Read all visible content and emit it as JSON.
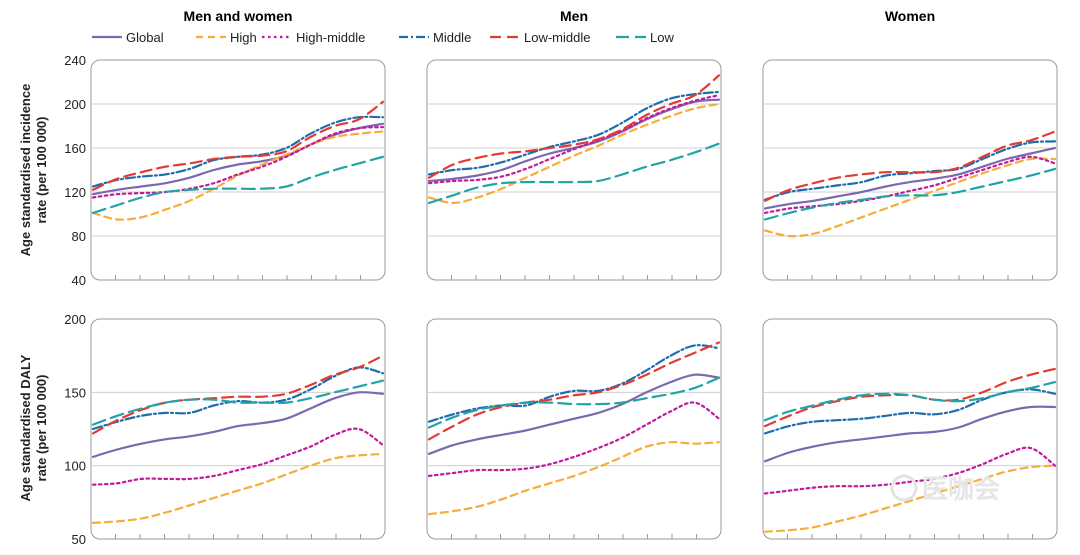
{
  "columns": [
    "Men and women",
    "Men",
    "Women"
  ],
  "row_labels": [
    [
      "Age standardised incidence",
      "rate (per 100 000)"
    ],
    [
      "Age standardised DALY",
      "rate (per 100 000)"
    ]
  ],
  "watermark": "医咖会",
  "legend": [
    {
      "name": "Global",
      "color": "#7b68b0",
      "dash": "solid"
    },
    {
      "name": "High",
      "color": "#f6ad3c",
      "dash": "dashed"
    },
    {
      "name": "High-middle",
      "color": "#c21a9c",
      "dash": "dotted"
    },
    {
      "name": "Middle",
      "color": "#1f6cae",
      "dash": "dashdot"
    },
    {
      "name": "Low-middle",
      "color": "#e23b32",
      "dash": "longdash"
    },
    {
      "name": "Low",
      "color": "#22a3a9",
      "dash": "longdash2"
    }
  ],
  "chart_data": [
    {
      "type": "line",
      "row": 0,
      "col": 0,
      "title": "Men and women",
      "ylabel": "Age standardised incidence rate (per 100 000)",
      "ylim": [
        40,
        240
      ],
      "yticks": [
        40,
        80,
        120,
        160,
        200,
        240
      ],
      "x": [
        0,
        1,
        2,
        3,
        4,
        5,
        6,
        7,
        8,
        9,
        10,
        11,
        12
      ],
      "series": [
        {
          "name": "Global",
          "values": [
            118,
            122,
            125,
            128,
            133,
            140,
            145,
            148,
            153,
            163,
            172,
            178,
            182
          ]
        },
        {
          "name": "High",
          "values": [
            101,
            95,
            97,
            104,
            112,
            123,
            135,
            145,
            154,
            163,
            170,
            173,
            175
          ]
        },
        {
          "name": "High-middle",
          "values": [
            115,
            118,
            119,
            120,
            123,
            128,
            136,
            143,
            152,
            163,
            173,
            178,
            179
          ]
        },
        {
          "name": "Middle",
          "values": [
            125,
            131,
            134,
            136,
            141,
            149,
            152,
            154,
            160,
            173,
            183,
            188,
            188
          ]
        },
        {
          "name": "Low-middle",
          "values": [
            122,
            132,
            138,
            143,
            146,
            150,
            152,
            153,
            157,
            170,
            180,
            186,
            202
          ]
        },
        {
          "name": "Low",
          "values": [
            101,
            108,
            115,
            120,
            122,
            123,
            123,
            123,
            125,
            133,
            140,
            146,
            152
          ]
        }
      ]
    },
    {
      "type": "line",
      "row": 0,
      "col": 1,
      "title": "Men",
      "ylim": [
        40,
        240
      ],
      "yticks": [
        40,
        80,
        120,
        160,
        200,
        240
      ],
      "x": [
        0,
        1,
        2,
        3,
        4,
        5,
        6,
        7,
        8,
        9,
        10,
        11,
        12
      ],
      "series": [
        {
          "name": "Global",
          "values": [
            130,
            132,
            135,
            140,
            148,
            155,
            160,
            166,
            175,
            186,
            195,
            202,
            204
          ]
        },
        {
          "name": "High",
          "values": [
            115,
            110,
            115,
            123,
            133,
            143,
            153,
            162,
            172,
            181,
            189,
            196,
            200
          ]
        },
        {
          "name": "High-middle",
          "values": [
            128,
            130,
            131,
            134,
            141,
            150,
            159,
            167,
            176,
            187,
            196,
            203,
            208
          ]
        },
        {
          "name": "Middle",
          "values": [
            136,
            140,
            142,
            147,
            154,
            161,
            166,
            172,
            183,
            196,
            205,
            209,
            211
          ]
        },
        {
          "name": "Low-middle",
          "values": [
            133,
            145,
            151,
            155,
            157,
            160,
            163,
            168,
            177,
            190,
            200,
            208,
            226
          ]
        },
        {
          "name": "Low",
          "values": [
            110,
            117,
            124,
            128,
            129,
            129,
            129,
            130,
            136,
            143,
            149,
            156,
            164
          ]
        }
      ]
    },
    {
      "type": "line",
      "row": 0,
      "col": 2,
      "title": "Women",
      "ylim": [
        40,
        240
      ],
      "yticks": [
        40,
        80,
        120,
        160,
        200,
        240
      ],
      "x": [
        0,
        1,
        2,
        3,
        4,
        5,
        6,
        7,
        8,
        9,
        10,
        11,
        12
      ],
      "series": [
        {
          "name": "Global",
          "values": [
            105,
            109,
            112,
            116,
            120,
            125,
            129,
            132,
            136,
            143,
            150,
            155,
            160
          ]
        },
        {
          "name": "High",
          "values": [
            85,
            80,
            82,
            89,
            97,
            105,
            113,
            121,
            129,
            137,
            144,
            150,
            150
          ]
        },
        {
          "name": "High-middle",
          "values": [
            101,
            105,
            107,
            109,
            112,
            116,
            121,
            126,
            133,
            140,
            147,
            152,
            146
          ]
        },
        {
          "name": "Middle",
          "values": [
            113,
            120,
            123,
            126,
            129,
            135,
            137,
            139,
            141,
            150,
            159,
            165,
            166
          ]
        },
        {
          "name": "Low-middle",
          "values": [
            112,
            122,
            128,
            133,
            136,
            138,
            138,
            138,
            142,
            152,
            162,
            167,
            175
          ]
        },
        {
          "name": "Low",
          "values": [
            95,
            101,
            106,
            110,
            113,
            116,
            117,
            117,
            120,
            125,
            130,
            135,
            141
          ]
        }
      ]
    },
    {
      "type": "line",
      "row": 1,
      "col": 0,
      "ylabel": "Age standardised DALY rate (per 100 000)",
      "ylim": [
        50,
        200
      ],
      "yticks": [
        50,
        100,
        150,
        200
      ],
      "x": [
        0,
        1,
        2,
        3,
        4,
        5,
        6,
        7,
        8,
        9,
        10,
        11,
        12
      ],
      "series": [
        {
          "name": "Global",
          "values": [
            106,
            111,
            115,
            118,
            120,
            123,
            127,
            129,
            132,
            139,
            146,
            150,
            149
          ]
        },
        {
          "name": "High",
          "values": [
            61,
            62,
            64,
            68,
            73,
            78,
            83,
            88,
            94,
            100,
            105,
            107,
            108
          ]
        },
        {
          "name": "High-middle",
          "values": [
            87,
            88,
            91,
            91,
            91,
            93,
            97,
            101,
            107,
            113,
            121,
            125,
            114
          ]
        },
        {
          "name": "Middle",
          "values": [
            125,
            130,
            134,
            136,
            136,
            141,
            144,
            143,
            145,
            152,
            161,
            167,
            163
          ]
        },
        {
          "name": "Low-middle",
          "values": [
            122,
            131,
            138,
            143,
            145,
            146,
            147,
            147,
            149,
            155,
            162,
            167,
            175
          ]
        },
        {
          "name": "Low",
          "values": [
            128,
            134,
            139,
            143,
            145,
            145,
            143,
            143,
            143,
            146,
            150,
            154,
            158
          ]
        }
      ]
    },
    {
      "type": "line",
      "row": 1,
      "col": 1,
      "ylim": [
        50,
        200
      ],
      "yticks": [
        50,
        100,
        150,
        200
      ],
      "x": [
        0,
        1,
        2,
        3,
        4,
        5,
        6,
        7,
        8,
        9,
        10,
        11,
        12
      ],
      "series": [
        {
          "name": "Global",
          "values": [
            108,
            114,
            118,
            121,
            124,
            128,
            132,
            136,
            142,
            150,
            157,
            162,
            160
          ]
        },
        {
          "name": "High",
          "values": [
            67,
            69,
            72,
            77,
            83,
            88,
            93,
            99,
            106,
            113,
            116,
            115,
            116
          ]
        },
        {
          "name": "High-middle",
          "values": [
            93,
            95,
            97,
            97,
            98,
            101,
            106,
            112,
            119,
            128,
            137,
            143,
            132
          ]
        },
        {
          "name": "Middle",
          "values": [
            130,
            135,
            139,
            141,
            141,
            147,
            151,
            151,
            156,
            165,
            175,
            182,
            180
          ]
        },
        {
          "name": "Low-middle",
          "values": [
            118,
            127,
            135,
            140,
            143,
            145,
            148,
            150,
            155,
            162,
            170,
            177,
            184
          ]
        },
        {
          "name": "Low",
          "values": [
            126,
            133,
            138,
            141,
            143,
            143,
            142,
            142,
            143,
            146,
            149,
            153,
            160
          ]
        }
      ]
    },
    {
      "type": "line",
      "row": 1,
      "col": 2,
      "ylim": [
        50,
        200
      ],
      "yticks": [
        50,
        100,
        150,
        200
      ],
      "x": [
        0,
        1,
        2,
        3,
        4,
        5,
        6,
        7,
        8,
        9,
        10,
        11,
        12
      ],
      "series": [
        {
          "name": "Global",
          "values": [
            103,
            109,
            113,
            116,
            118,
            120,
            122,
            123,
            126,
            132,
            137,
            140,
            140
          ]
        },
        {
          "name": "High",
          "values": [
            55,
            56,
            58,
            62,
            66,
            71,
            76,
            81,
            86,
            91,
            96,
            99,
            100
          ]
        },
        {
          "name": "High-middle",
          "values": [
            81,
            83,
            85,
            86,
            86,
            87,
            89,
            91,
            95,
            101,
            108,
            112,
            100
          ]
        },
        {
          "name": "Middle",
          "values": [
            122,
            127,
            130,
            131,
            132,
            134,
            136,
            135,
            138,
            145,
            150,
            152,
            149
          ]
        },
        {
          "name": "Low-middle",
          "values": [
            127,
            134,
            140,
            144,
            147,
            148,
            148,
            145,
            145,
            150,
            157,
            162,
            166
          ]
        },
        {
          "name": "Low",
          "values": [
            131,
            137,
            141,
            145,
            148,
            149,
            148,
            145,
            144,
            146,
            150,
            153,
            157
          ]
        }
      ]
    }
  ]
}
